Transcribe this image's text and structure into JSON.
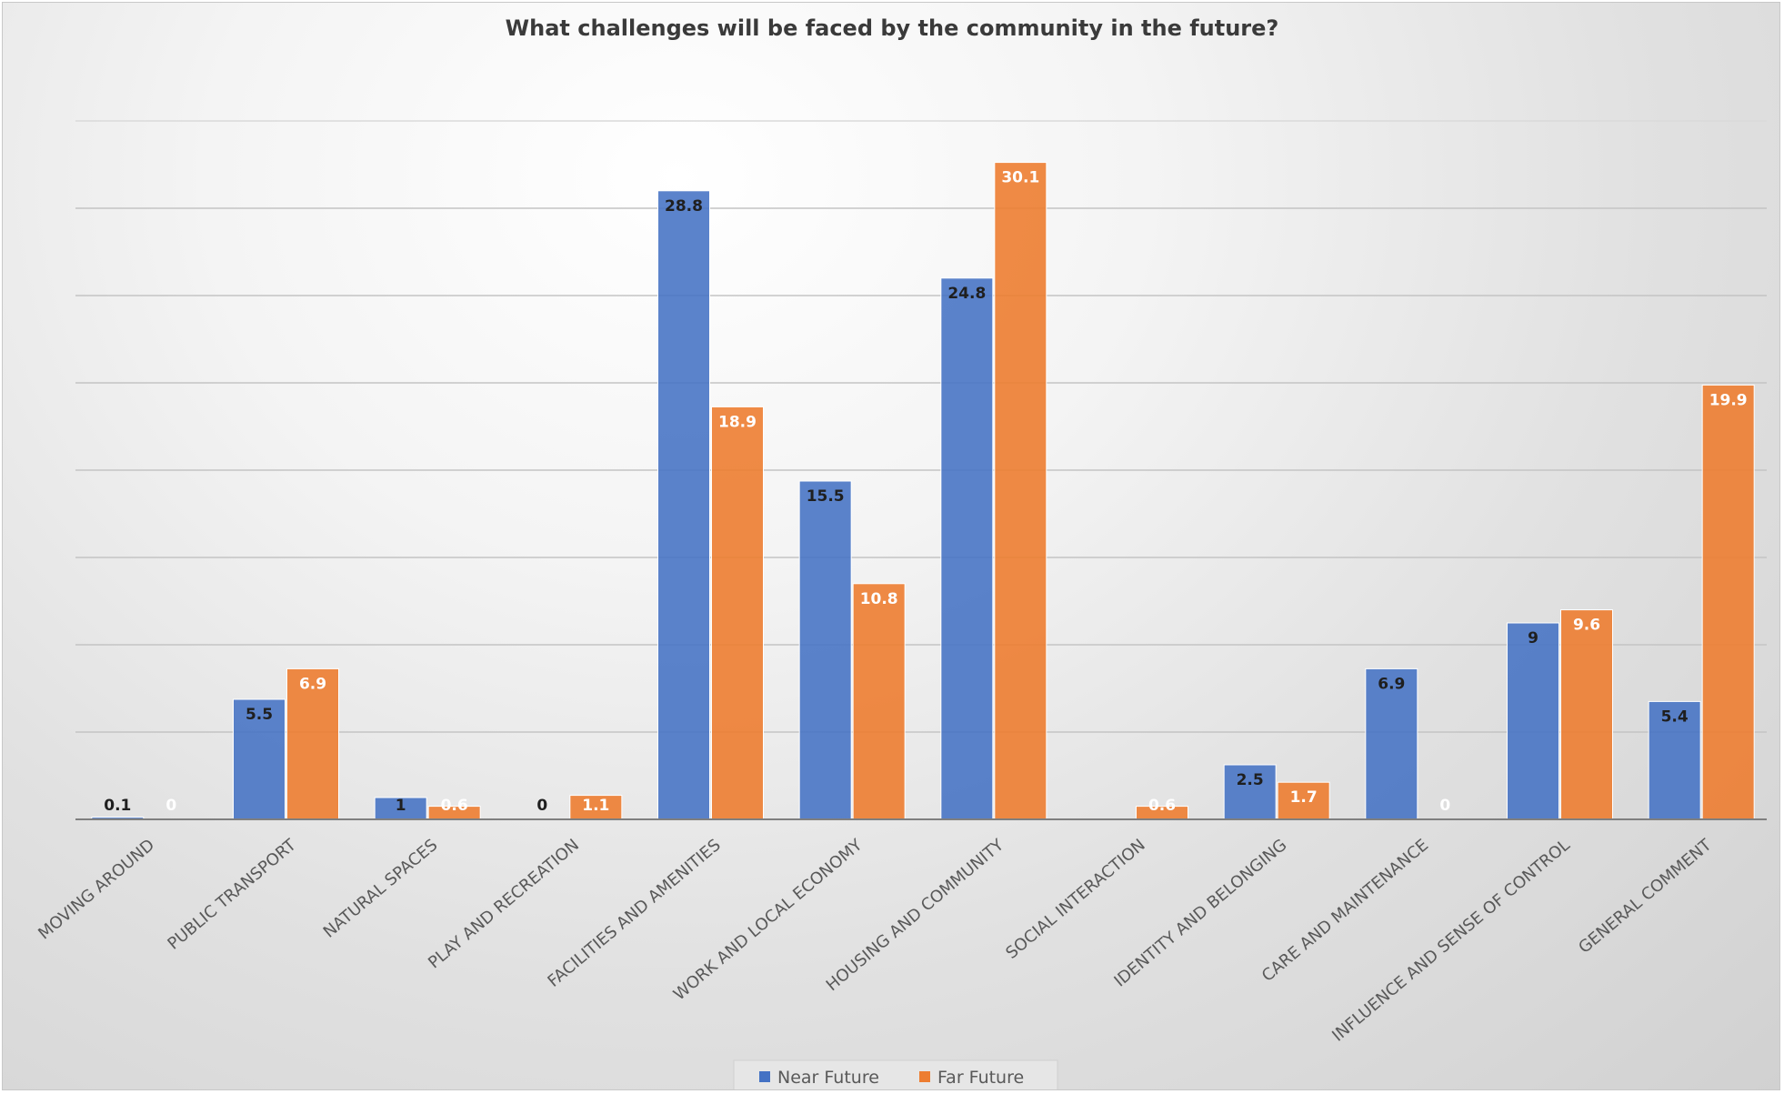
{
  "chart_data": {
    "type": "bar",
    "title": "What challenges will be faced by the community in the future?",
    "xlabel": "",
    "ylabel": "",
    "ylim": [
      0,
      35
    ],
    "grid": true,
    "legend": "bottom",
    "categories": [
      "MOVING AROUND",
      "PUBLIC TRANSPORT",
      "NATURAL SPACES",
      "PLAY AND RECREATION",
      "FACILITIES AND AMENITIES",
      "WORK AND LOCAL ECONOMY",
      "HOUSING AND COMMUNITY",
      "SOCIAL INTERACTION",
      "IDENTITY AND BELONGING",
      "CARE AND MAINTENANCE",
      "INFLUENCE AND SENSE OF CONTROL",
      "GENERAL COMMENT"
    ],
    "series": [
      {
        "name": "Near Future",
        "color": "#4472C4",
        "values": [
          0.1,
          5.5,
          1,
          0,
          28.8,
          15.5,
          24.8,
          null,
          2.5,
          6.9,
          9,
          5.4
        ],
        "labels": [
          "0.1",
          "5.5",
          "1",
          "0",
          "28.8",
          "15.5",
          "24.8",
          null,
          "2.5",
          "6.9",
          "9",
          "5.4"
        ]
      },
      {
        "name": "Far Future",
        "color": "#ED7D31",
        "values": [
          0,
          6.9,
          0.6,
          1.1,
          18.9,
          10.8,
          30.1,
          0.6,
          1.7,
          0,
          9.6,
          19.9
        ],
        "labels": [
          "0",
          "6.9",
          "0.6",
          "1.1",
          "18.9",
          "10.8",
          "30.1",
          "0.6",
          "1.7",
          "0",
          "9.6",
          "19.9"
        ]
      }
    ]
  }
}
